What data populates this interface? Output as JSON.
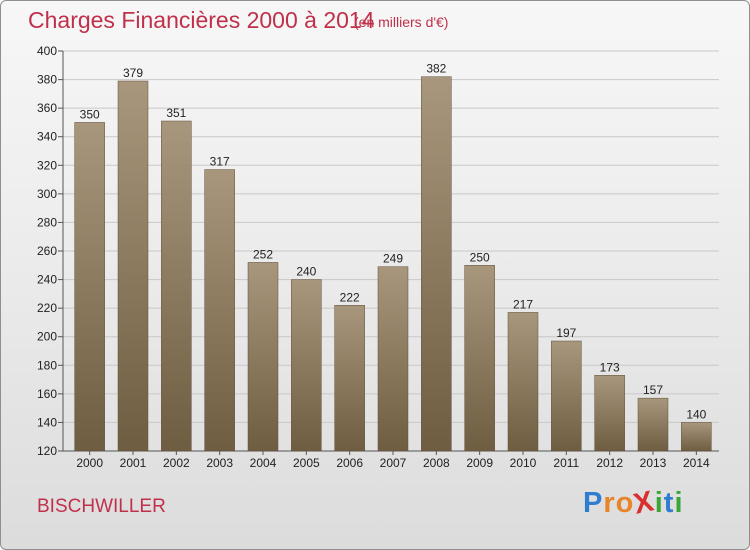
{
  "header": {
    "title": "Charges Financières 2000 à 2014",
    "subtitle": "(en milliers d'€)"
  },
  "footer": {
    "commune": "BISCHWILLER",
    "logo_letters": [
      {
        "char": "P",
        "color": "#2e7dd1"
      },
      {
        "char": "r",
        "color": "#e8842a"
      },
      {
        "char": "o",
        "color": "#e8842a"
      },
      {
        "char": "X",
        "color": "#d82f2f"
      },
      {
        "char": "i",
        "color": "#3aa63a"
      },
      {
        "char": "t",
        "color": "#2e7dd1"
      },
      {
        "char": "i",
        "color": "#3aa63a"
      }
    ]
  },
  "chart_data": {
    "type": "bar",
    "categories": [
      "2000",
      "2001",
      "2002",
      "2003",
      "2004",
      "2005",
      "2006",
      "2007",
      "2008",
      "2009",
      "2010",
      "2011",
      "2012",
      "2013",
      "2014"
    ],
    "values": [
      350,
      379,
      351,
      317,
      252,
      240,
      222,
      249,
      382,
      250,
      217,
      197,
      173,
      157,
      140
    ],
    "title": "Charges Financières 2000 à 2014",
    "subtitle": "(en milliers d'€)",
    "ylim": [
      120,
      400
    ],
    "yticks": [
      120,
      140,
      160,
      180,
      200,
      220,
      240,
      260,
      280,
      300,
      320,
      340,
      360,
      380,
      400
    ],
    "grid": true,
    "colors": {
      "bar_top": "#a8977c",
      "bar_bottom": "#6f5d42",
      "grid": "#c8c8c8",
      "title": "#c0304a"
    }
  }
}
